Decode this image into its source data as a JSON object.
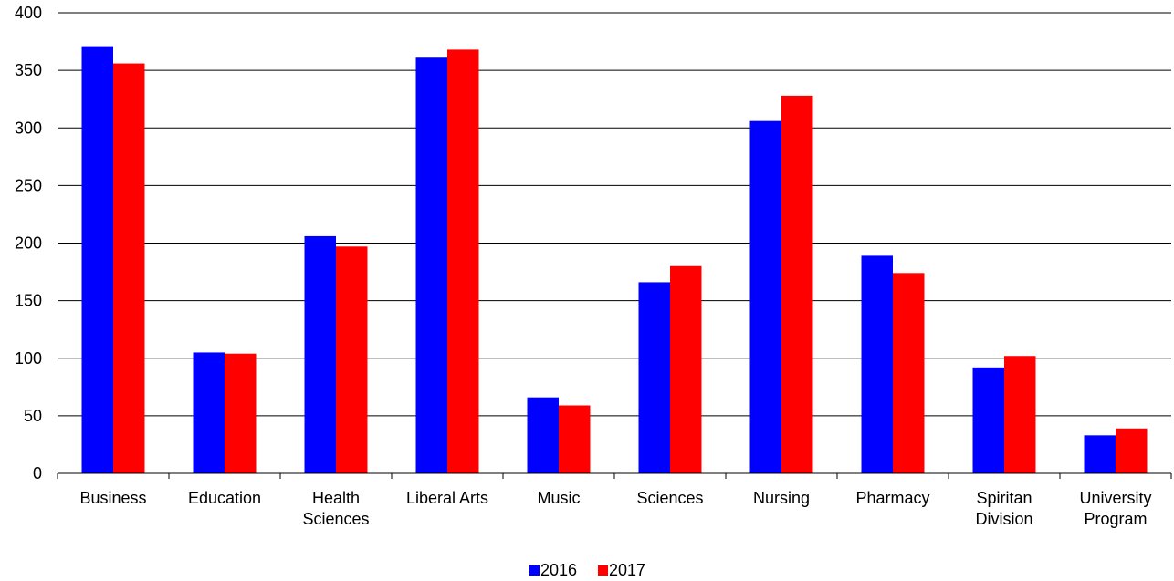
{
  "chart_data": {
    "type": "bar",
    "categories": [
      [
        "Business"
      ],
      [
        "Education"
      ],
      [
        "Health",
        "Sciences"
      ],
      [
        "Liberal Arts"
      ],
      [
        "Music"
      ],
      [
        "Sciences"
      ],
      [
        "Nursing"
      ],
      [
        "Pharmacy"
      ],
      [
        "Spiritan",
        "Division"
      ],
      [
        "University",
        "Program"
      ]
    ],
    "series": [
      {
        "name": "2016",
        "color": "#0000FF",
        "values": [
          371,
          105,
          206,
          361,
          66,
          166,
          306,
          189,
          92,
          33
        ]
      },
      {
        "name": "2017",
        "color": "#FF0000",
        "values": [
          356,
          104,
          197,
          368,
          59,
          180,
          328,
          174,
          102,
          39
        ]
      }
    ],
    "ylim": [
      0,
      400
    ],
    "yticks": [
      0,
      50,
      100,
      150,
      200,
      250,
      300,
      350,
      400
    ],
    "grid": true,
    "legend_position": "bottom-center"
  }
}
